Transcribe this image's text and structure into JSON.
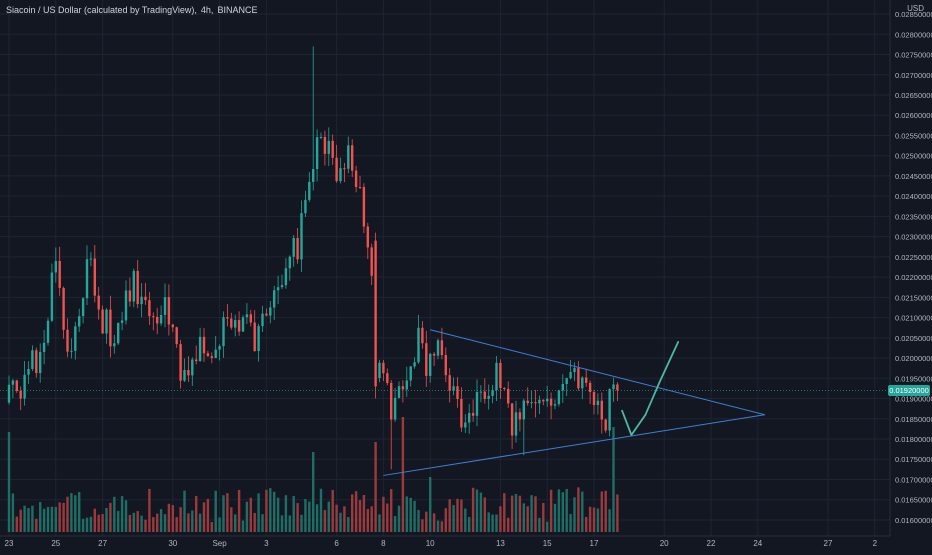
{
  "header": {
    "symbol_name": "Siacoin / US Dollar (calculated by TradingView)",
    "interval": "4h",
    "exchange": "BINANCE",
    "separator": ", "
  },
  "price_axis": {
    "currency": "USD",
    "current_price_label": "0.01920000"
  },
  "colors": {
    "background": "#131722",
    "grid": "#1f2433",
    "up": "#26a69a",
    "down": "#ef5350",
    "volume_up": "#1f6e66",
    "volume_down": "#9b3a3c",
    "axis_text": "#b2b5be",
    "trend_lines": "#3f7fd6",
    "drawing": "#4fb8a3",
    "price_line": "#26a69a"
  },
  "chart_data": {
    "type": "candlestick",
    "y_axis": {
      "min": 0.0159,
      "max": 0.0286,
      "tick_labels": [
        "0.02850000",
        "0.02800000",
        "0.02750000",
        "0.02700000",
        "0.02650000",
        "0.02600000",
        "0.02550000",
        "0.02500000",
        "0.02450000",
        "0.02400000",
        "0.02350000",
        "0.02300000",
        "0.02250000",
        "0.02200000",
        "0.02150000",
        "0.02100000",
        "0.02050000",
        "0.02000000",
        "0.01950000",
        "0.01900000",
        "0.01850000",
        "0.01800000",
        "0.01750000",
        "0.01700000",
        "0.01650000",
        "0.01600000"
      ]
    },
    "x_axis": {
      "tick_labels": [
        {
          "label": "23",
          "day": 0
        },
        {
          "label": "25",
          "day": 2
        },
        {
          "label": "27",
          "day": 4
        },
        {
          "label": "30",
          "day": 7
        },
        {
          "label": "Sep",
          "day": 9
        },
        {
          "label": "3",
          "day": 11
        },
        {
          "label": "6",
          "day": 14
        },
        {
          "label": "8",
          "day": 16
        },
        {
          "label": "10",
          "day": 18
        },
        {
          "label": "13",
          "day": 21
        },
        {
          "label": "15",
          "day": 23
        },
        {
          "label": "17",
          "day": 25
        },
        {
          "label": "20",
          "day": 28
        },
        {
          "label": "22",
          "day": 30
        },
        {
          "label": "24",
          "day": 32
        },
        {
          "label": "27",
          "day": 35
        },
        {
          "label": "2",
          "day": 37
        }
      ]
    },
    "price_anchors": [
      [
        0,
        0.0189
      ],
      [
        0.5,
        0.0192
      ],
      [
        0.9,
        0.0203
      ],
      [
        1.3,
        0.0199
      ],
      [
        1.7,
        0.0212
      ],
      [
        1.9,
        0.0232
      ],
      [
        2.3,
        0.0212
      ],
      [
        2.7,
        0.02
      ],
      [
        3.1,
        0.0216
      ],
      [
        3.4,
        0.0228
      ],
      [
        3.7,
        0.0214
      ],
      [
        4.1,
        0.0209
      ],
      [
        4.5,
        0.02
      ],
      [
        4.9,
        0.0212
      ],
      [
        5.3,
        0.0219
      ],
      [
        5.7,
        0.0213
      ],
      [
        6.1,
        0.0211
      ],
      [
        6.5,
        0.0214
      ],
      [
        6.9,
        0.0208
      ],
      [
        7.3,
        0.0199
      ],
      [
        7.7,
        0.0197
      ],
      [
        8.1,
        0.0203
      ],
      [
        8.5,
        0.0199
      ],
      [
        8.9,
        0.0204
      ],
      [
        9.3,
        0.021
      ],
      [
        9.7,
        0.0208
      ],
      [
        10.1,
        0.0212
      ],
      [
        10.5,
        0.0206
      ],
      [
        10.9,
        0.0211
      ],
      [
        11.3,
        0.0214
      ],
      [
        11.7,
        0.0214
      ],
      [
        12.0,
        0.0224
      ],
      [
        12.3,
        0.0227
      ],
      [
        12.6,
        0.0236
      ],
      [
        12.9,
        0.0247
      ],
      [
        13.2,
        0.0255
      ],
      [
        13.5,
        0.0249
      ],
      [
        13.8,
        0.0253
      ],
      [
        14.1,
        0.0245
      ],
      [
        14.5,
        0.0251
      ],
      [
        14.9,
        0.0243
      ],
      [
        15.2,
        0.0236
      ],
      [
        15.5,
        0.0219
      ],
      [
        15.7,
        0.0193
      ],
      [
        16.0,
        0.0199
      ],
      [
        16.3,
        0.0185
      ],
      [
        16.6,
        0.0196
      ],
      [
        16.9,
        0.0191
      ],
      [
        17.2,
        0.0199
      ],
      [
        17.5,
        0.0203
      ],
      [
        17.8,
        0.0199
      ],
      [
        18.1,
        0.0204
      ],
      [
        18.4,
        0.0201
      ],
      [
        18.7,
        0.0197
      ],
      [
        19.0,
        0.0189
      ],
      [
        19.3,
        0.0185
      ],
      [
        19.7,
        0.0188
      ],
      [
        20.1,
        0.0187
      ],
      [
        20.5,
        0.0192
      ],
      [
        20.9,
        0.0196
      ],
      [
        21.3,
        0.0186
      ],
      [
        21.7,
        0.0184
      ],
      [
        22.1,
        0.0187
      ],
      [
        22.5,
        0.0192
      ],
      [
        22.9,
        0.0188
      ],
      [
        23.3,
        0.019
      ],
      [
        23.7,
        0.0196
      ],
      [
        24.1,
        0.0197
      ],
      [
        24.5,
        0.0191
      ],
      [
        24.9,
        0.0189
      ],
      [
        25.3,
        0.0186
      ],
      [
        25.6,
        0.0186
      ],
      [
        25.9,
        0.0195
      ],
      [
        26.1,
        0.0192
      ]
    ],
    "annotations": {
      "triangle": {
        "upper_line": [
          [
            18.0,
            0.0207
          ],
          [
            32.3,
            0.0186
          ]
        ],
        "lower_line": [
          [
            16.0,
            0.0171
          ],
          [
            32.3,
            0.0186
          ]
        ]
      },
      "projection_path": [
        [
          26.2,
          0.0187
        ],
        [
          26.6,
          0.0181
        ],
        [
          27.2,
          0.0186
        ],
        [
          27.8,
          0.0194
        ],
        [
          28.6,
          0.0204
        ]
      ]
    },
    "last_price": 0.0192
  }
}
